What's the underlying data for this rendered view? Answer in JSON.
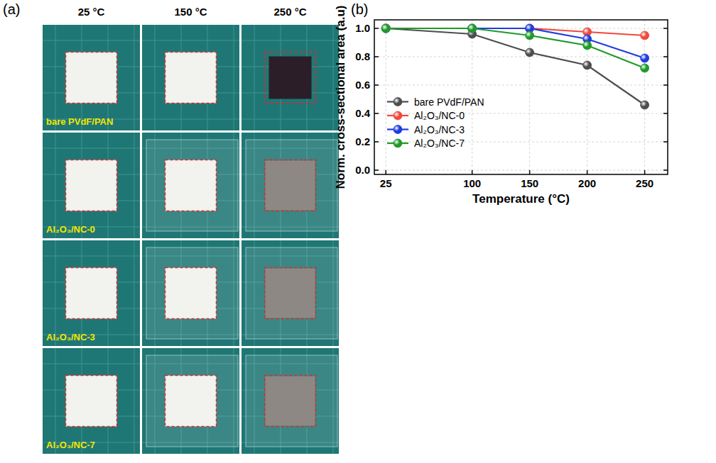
{
  "panel_labels": [
    "(a)",
    "(b)"
  ],
  "photo_panel": {
    "columns": [
      "25 °C",
      "150 °C",
      "250 °C"
    ],
    "rows": [
      "bare PVdF/PAN",
      "Al₂O₃/NC-0",
      "Al₂O₃/NC-3",
      "Al₂O₃/NC-7"
    ]
  },
  "chart_data": {
    "type": "line",
    "x_label": "Temperature (°C)",
    "y_label": "Norm. cross-sectional area (a.u)",
    "x": [
      25,
      100,
      150,
      200,
      250
    ],
    "series": [
      {
        "name": "bare PVdF/PAN",
        "color": "#4d4d4d",
        "marker": "circle",
        "values": [
          1.0,
          0.96,
          0.83,
          0.74,
          0.46
        ]
      },
      {
        "name": "Al₂O₃/NC-0",
        "color": "#f0483c",
        "marker": "circle",
        "values": [
          1.0,
          1.0,
          1.0,
          0.975,
          0.95
        ]
      },
      {
        "name": "Al₂O₃/NC-3",
        "color": "#1f3ce0",
        "marker": "circle",
        "values": [
          1.0,
          1.0,
          1.0,
          0.925,
          0.79
        ]
      },
      {
        "name": "Al₂O₃/NC-7",
        "color": "#1f9a2a",
        "marker": "circle",
        "values": [
          1.0,
          1.0,
          0.95,
          0.88,
          0.72
        ]
      }
    ],
    "xlim": [
      15,
      270
    ],
    "xticks": [
      25,
      100,
      150,
      200,
      250
    ],
    "ylim": [
      -0.03,
      1.06
    ],
    "yticks": [
      {
        "value": 0,
        "label": "0.0"
      },
      0.2,
      0.4,
      0.6,
      0.8,
      {
        "value": 1,
        "label": "1.0"
      }
    ],
    "grid": true,
    "legend": "lower left"
  }
}
